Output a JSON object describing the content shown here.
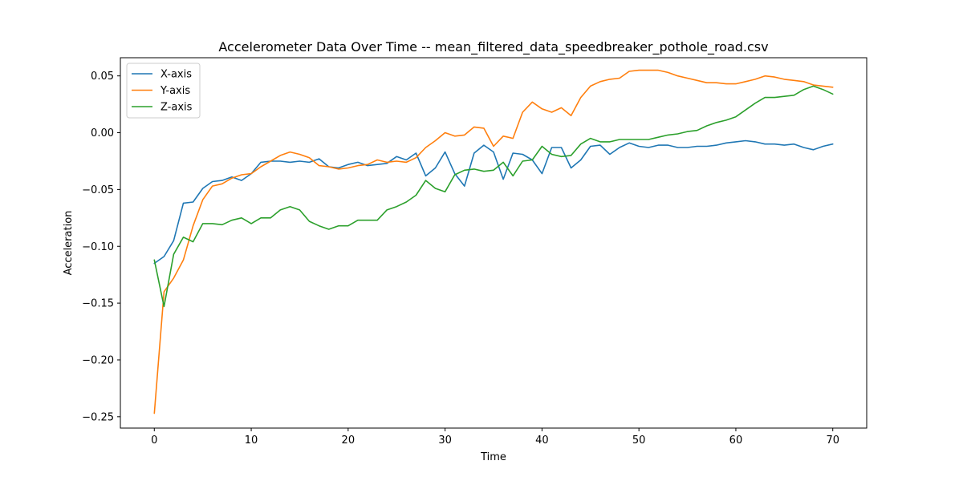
{
  "chart_data": {
    "type": "line",
    "title": "Accelerometer Data Over Time -- mean_filtered_data_speedbreaker_pothole_road.csv",
    "xlabel": "Time",
    "ylabel": "Acceleration",
    "xlim": [
      -3.5,
      73.5
    ],
    "ylim": [
      -0.26,
      0.066
    ],
    "xticks": [
      0,
      10,
      20,
      30,
      40,
      50,
      60,
      70
    ],
    "yticks": [
      -0.25,
      -0.2,
      -0.15,
      -0.1,
      -0.05,
      0.0,
      0.05
    ],
    "xtick_labels": [
      "0",
      "10",
      "20",
      "30",
      "40",
      "50",
      "60",
      "70"
    ],
    "ytick_labels": [
      "−0.25",
      "−0.20",
      "−0.15",
      "−0.10",
      "−0.05",
      "0.00",
      "0.05"
    ],
    "grid": false,
    "legend_position": "top-left",
    "x": [
      0,
      1,
      2,
      3,
      4,
      5,
      6,
      7,
      8,
      9,
      10,
      11,
      12,
      13,
      14,
      15,
      16,
      17,
      18,
      19,
      20,
      21,
      22,
      23,
      24,
      25,
      26,
      27,
      28,
      29,
      30,
      31,
      32,
      33,
      34,
      35,
      36,
      37,
      38,
      39,
      40,
      41,
      42,
      43,
      44,
      45,
      46,
      47,
      48,
      49,
      50,
      51,
      52,
      53,
      54,
      55,
      56,
      57,
      58,
      59,
      60,
      61,
      62,
      63,
      64,
      65,
      66,
      67,
      68,
      69,
      70
    ],
    "series": [
      {
        "name": "X-axis",
        "color": "#1f77b4",
        "values": [
          -0.115,
          -0.109,
          -0.095,
          -0.062,
          -0.061,
          -0.049,
          -0.043,
          -0.042,
          -0.039,
          -0.042,
          -0.036,
          -0.026,
          -0.025,
          -0.025,
          -0.026,
          -0.025,
          -0.026,
          -0.023,
          -0.03,
          -0.031,
          -0.028,
          -0.026,
          -0.029,
          -0.028,
          -0.027,
          -0.021,
          -0.024,
          -0.018,
          -0.038,
          -0.031,
          -0.017,
          -0.036,
          -0.047,
          -0.018,
          -0.011,
          -0.017,
          -0.041,
          -0.018,
          -0.019,
          -0.024,
          -0.036,
          -0.013,
          -0.013,
          -0.031,
          -0.024,
          -0.012,
          -0.011,
          -0.019,
          -0.013,
          -0.009,
          -0.012,
          -0.013,
          -0.011,
          -0.011,
          -0.013,
          -0.013,
          -0.012,
          -0.012,
          -0.011,
          -0.009,
          -0.008,
          -0.007,
          -0.008,
          -0.01,
          -0.01,
          -0.011,
          -0.01,
          -0.013,
          -0.015,
          -0.012,
          -0.01
        ]
      },
      {
        "name": "Y-axis",
        "color": "#ff7f0e",
        "values": [
          -0.247,
          -0.14,
          -0.128,
          -0.112,
          -0.082,
          -0.059,
          -0.047,
          -0.045,
          -0.04,
          -0.037,
          -0.036,
          -0.03,
          -0.025,
          -0.02,
          -0.017,
          -0.019,
          -0.022,
          -0.029,
          -0.03,
          -0.032,
          -0.031,
          -0.029,
          -0.028,
          -0.024,
          -0.026,
          -0.025,
          -0.026,
          -0.022,
          -0.013,
          -0.007,
          0.0,
          -0.003,
          -0.002,
          0.005,
          0.004,
          -0.012,
          -0.003,
          -0.005,
          0.018,
          0.027,
          0.021,
          0.018,
          0.022,
          0.015,
          0.031,
          0.041,
          0.045,
          0.047,
          0.048,
          0.054,
          0.055,
          0.055,
          0.055,
          0.053,
          0.05,
          0.048,
          0.046,
          0.044,
          0.044,
          0.043,
          0.043,
          0.045,
          0.047,
          0.05,
          0.049,
          0.047,
          0.046,
          0.045,
          0.042,
          0.041,
          0.04
        ]
      },
      {
        "name": "Z-axis",
        "color": "#2ca02c",
        "values": [
          -0.112,
          -0.153,
          -0.107,
          -0.092,
          -0.096,
          -0.08,
          -0.08,
          -0.081,
          -0.077,
          -0.075,
          -0.08,
          -0.075,
          -0.075,
          -0.068,
          -0.065,
          -0.068,
          -0.078,
          -0.082,
          -0.085,
          -0.082,
          -0.082,
          -0.077,
          -0.077,
          -0.077,
          -0.068,
          -0.065,
          -0.061,
          -0.055,
          -0.042,
          -0.049,
          -0.052,
          -0.037,
          -0.033,
          -0.032,
          -0.034,
          -0.033,
          -0.026,
          -0.038,
          -0.025,
          -0.024,
          -0.012,
          -0.019,
          -0.021,
          -0.02,
          -0.01,
          -0.005,
          -0.008,
          -0.008,
          -0.006,
          -0.006,
          -0.006,
          -0.006,
          -0.004,
          -0.002,
          -0.001,
          0.001,
          0.002,
          0.006,
          0.009,
          0.011,
          0.014,
          0.02,
          0.026,
          0.031,
          0.031,
          0.032,
          0.033,
          0.038,
          0.041,
          0.038,
          0.034
        ]
      }
    ]
  }
}
